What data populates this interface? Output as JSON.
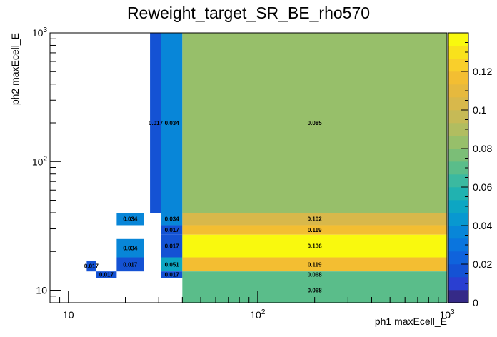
{
  "chart_data": {
    "type": "heatmap",
    "title": "Reweight_target_SR_BE_rho570",
    "xlabel": "ph1 maxEcell_E",
    "ylabel": "ph2 maxEcell_E",
    "x_scale": "log",
    "y_scale": "log",
    "xlim": [
      8,
      1000
    ],
    "ylim": [
      8,
      1000
    ],
    "x_ticks": [
      {
        "value": 10,
        "base": "10",
        "exp": ""
      },
      {
        "value": 100,
        "base": "10",
        "exp": "2"
      },
      {
        "value": 1000,
        "base": "10",
        "exp": "3"
      }
    ],
    "y_ticks": [
      {
        "value": 10,
        "base": "10",
        "exp": ""
      },
      {
        "value": 100,
        "base": "10",
        "exp": "2"
      },
      {
        "value": 1000,
        "base": "10",
        "exp": "3"
      }
    ],
    "colorbar": {
      "range": [
        0,
        0.14
      ],
      "levels": [
        "#352a87",
        "#2a3fd1",
        "#1452d4",
        "#0f63dc",
        "#0a75de",
        "#0886d8",
        "#0898d0",
        "#0da6c3",
        "#21b2b0",
        "#3bb9a0",
        "#5abd8a",
        "#7bbe77",
        "#97bf6a",
        "#b1bd60",
        "#c6ba56",
        "#d8b84b",
        "#e6b93e",
        "#f3be32",
        "#f9cf2b",
        "#f9e21c",
        "#f9f90e"
      ],
      "ticks": [
        {
          "value": 0,
          "label": "0"
        },
        {
          "value": 0.02,
          "label": "0.02"
        },
        {
          "value": 0.04,
          "label": "0.04"
        },
        {
          "value": 0.06,
          "label": "0.06"
        },
        {
          "value": 0.08,
          "label": "0.08"
        },
        {
          "value": 0.1,
          "label": "0.1"
        },
        {
          "value": 0.12,
          "label": "0.12"
        }
      ]
    },
    "cells": [
      {
        "x0": 27,
        "x1": 31,
        "y0": 40,
        "y1": 1000,
        "value": 0.017,
        "label": "0.017"
      },
      {
        "x0": 31,
        "x1": 40,
        "y0": 40,
        "y1": 1000,
        "value": 0.034,
        "label": "0.034"
      },
      {
        "x0": 40,
        "x1": 1000,
        "y0": 40,
        "y1": 1000,
        "value": 0.085,
        "label": "0.085"
      },
      {
        "x0": 18,
        "x1": 25,
        "y0": 32,
        "y1": 40,
        "value": 0.034,
        "label": "0.034"
      },
      {
        "x0": 31,
        "x1": 40,
        "y0": 32,
        "y1": 40,
        "value": 0.034,
        "label": "0.034"
      },
      {
        "x0": 40,
        "x1": 1000,
        "y0": 32,
        "y1": 40,
        "value": 0.102,
        "label": "0.102"
      },
      {
        "x0": 31,
        "x1": 40,
        "y0": 27,
        "y1": 32,
        "value": 0.017,
        "label": "0.017"
      },
      {
        "x0": 40,
        "x1": 1000,
        "y0": 27,
        "y1": 32,
        "value": 0.119,
        "label": "0.119"
      },
      {
        "x0": 18,
        "x1": 25,
        "y0": 18,
        "y1": 25,
        "value": 0.034,
        "label": "0.034"
      },
      {
        "x0": 31,
        "x1": 40,
        "y0": 18,
        "y1": 27,
        "value": 0.017,
        "label": "0.017"
      },
      {
        "x0": 40,
        "x1": 1000,
        "y0": 18,
        "y1": 27,
        "value": 0.136,
        "label": "0.136"
      },
      {
        "x0": 12.5,
        "x1": 14,
        "y0": 14,
        "y1": 17,
        "value": 0.017,
        "label": "0.017"
      },
      {
        "x0": 18,
        "x1": 25,
        "y0": 14,
        "y1": 18,
        "value": 0.017,
        "label": "0.017"
      },
      {
        "x0": 31,
        "x1": 40,
        "y0": 14,
        "y1": 18,
        "value": 0.051,
        "label": "0.051"
      },
      {
        "x0": 40,
        "x1": 1000,
        "y0": 14,
        "y1": 18,
        "value": 0.119,
        "label": "0.119"
      },
      {
        "x0": 14,
        "x1": 18,
        "y0": 12.5,
        "y1": 14,
        "value": 0.017,
        "label": "0.017"
      },
      {
        "x0": 31,
        "x1": 40,
        "y0": 12.5,
        "y1": 14,
        "value": 0.017,
        "label": "0.017"
      },
      {
        "x0": 40,
        "x1": 1000,
        "y0": 12.5,
        "y1": 14,
        "value": 0.068,
        "label": "0.068"
      },
      {
        "x0": 40,
        "x1": 1000,
        "y0": 8,
        "y1": 12.5,
        "value": 0.068,
        "label": "0.068"
      }
    ]
  }
}
